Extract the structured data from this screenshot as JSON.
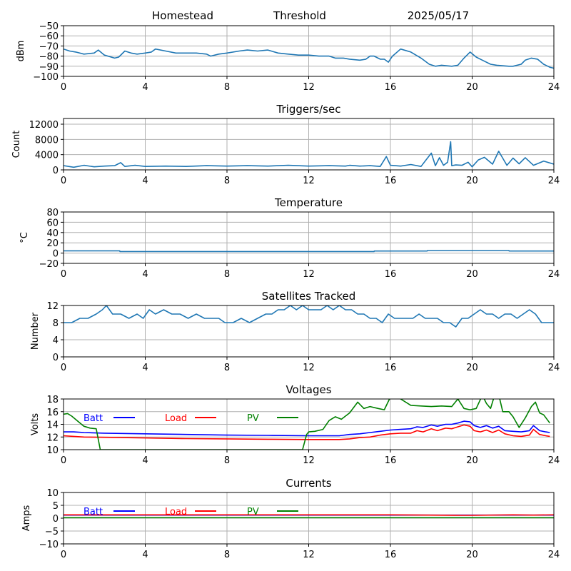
{
  "header": {
    "site": "Homestead",
    "mode": "Threshold",
    "date": "2025/05/17"
  },
  "colors": {
    "series_default": "#1f77b4",
    "batt": "#0000ff",
    "load": "#ff0000",
    "pv": "#008000",
    "grid": "#b0b0b0"
  },
  "chart_data": [
    {
      "id": "rssi",
      "type": "line",
      "title": "",
      "xlabel": "",
      "ylabel": "dBm",
      "xlim": [
        0,
        24
      ],
      "ylim": [
        -100,
        -50
      ],
      "xticks": [
        0,
        4,
        8,
        12,
        16,
        20,
        24
      ],
      "yticks": [
        -100,
        -90,
        -80,
        -70,
        -60,
        -50
      ],
      "grid": true,
      "series": [
        {
          "color": "#1f77b4",
          "x": [
            0,
            0.3,
            0.6,
            1.0,
            1.5,
            1.7,
            2.0,
            2.5,
            2.7,
            3.0,
            3.3,
            3.6,
            4.0,
            4.3,
            4.5,
            5.0,
            5.5,
            6.0,
            6.5,
            7.0,
            7.2,
            7.6,
            8.0,
            8.6,
            9.0,
            9.5,
            10.0,
            10.5,
            11.0,
            11.5,
            12.0,
            12.5,
            13.0,
            13.3,
            13.7,
            14.0,
            14.5,
            14.8,
            15.0,
            15.2,
            15.5,
            15.7,
            15.9,
            16.1,
            16.5,
            17.0,
            17.5,
            17.9,
            18.2,
            18.5,
            19.0,
            19.3,
            19.6,
            19.9,
            20.2,
            20.5,
            20.9,
            21.2,
            21.8,
            22.0,
            22.4,
            22.6,
            22.9,
            23.2,
            23.5,
            23.8,
            24.0
          ],
          "y": [
            -73,
            -75,
            -76,
            -78,
            -77,
            -74,
            -79,
            -82,
            -81,
            -75,
            -77,
            -78,
            -77,
            -76,
            -73,
            -75,
            -77,
            -77,
            -77,
            -78,
            -80,
            -78,
            -77,
            -75,
            -74,
            -75,
            -74,
            -77,
            -78,
            -79,
            -79,
            -80,
            -80,
            -82,
            -82,
            -83,
            -84,
            -83,
            -80,
            -80,
            -83,
            -83,
            -86,
            -80,
            -73,
            -76,
            -82,
            -88,
            -90,
            -89,
            -90,
            -89,
            -82,
            -76,
            -81,
            -84,
            -88,
            -89,
            -90,
            -90,
            -88,
            -84,
            -82,
            -83,
            -88,
            -91,
            -92
          ]
        }
      ]
    },
    {
      "id": "triggers",
      "type": "line",
      "title": "Triggers/sec",
      "xlabel": "",
      "ylabel": "Count",
      "xlim": [
        0,
        24
      ],
      "ylim": [
        0,
        13500
      ],
      "xticks": [
        0,
        4,
        8,
        12,
        16,
        20,
        24
      ],
      "yticks": [
        0,
        4000,
        8000,
        12000
      ],
      "grid": true,
      "series": [
        {
          "color": "#1f77b4",
          "x": [
            0,
            0.5,
            1.0,
            1.5,
            2.0,
            2.5,
            2.8,
            3.0,
            3.5,
            4.0,
            5.0,
            6.0,
            7.0,
            8.0,
            9.0,
            10.0,
            11.0,
            12.0,
            13.0,
            13.8,
            14.0,
            14.5,
            15.0,
            15.5,
            15.8,
            16.0,
            16.5,
            17.0,
            17.5,
            17.8,
            18.0,
            18.2,
            18.4,
            18.6,
            18.8,
            18.95,
            19.0,
            19.2,
            19.5,
            19.8,
            20.0,
            20.3,
            20.6,
            21.0,
            21.3,
            21.7,
            22.0,
            22.3,
            22.6,
            23.0,
            23.5,
            24.0
          ],
          "y": [
            1100,
            700,
            1200,
            800,
            1000,
            1100,
            1900,
            900,
            1200,
            900,
            1000,
            900,
            1100,
            1000,
            1100,
            1000,
            1200,
            1000,
            1100,
            1000,
            1200,
            1000,
            1100,
            900,
            3500,
            1200,
            1000,
            1400,
            900,
            3000,
            4400,
            1100,
            3200,
            1200,
            2000,
            7400,
            1100,
            1300,
            1200,
            2000,
            800,
            2600,
            3300,
            1500,
            4900,
            1200,
            3100,
            1600,
            3200,
            1200,
            2300,
            1500
          ]
        }
      ]
    },
    {
      "id": "temperature",
      "type": "line",
      "title": "Temperature",
      "xlabel": "",
      "ylabel": "°C",
      "xlim": [
        0,
        24
      ],
      "ylim": [
        -20,
        80
      ],
      "xticks": [
        0,
        4,
        8,
        12,
        16,
        20,
        24
      ],
      "yticks": [
        -20,
        0,
        20,
        40,
        60,
        80
      ],
      "grid": true,
      "series": [
        {
          "color": "#1f77b4",
          "x": [
            0,
            2.75,
            2.76,
            15.2,
            15.21,
            17.8,
            17.81,
            21.8,
            21.81,
            24
          ],
          "y": [
            4.5,
            4.5,
            3.0,
            3.0,
            4.0,
            4.0,
            5.0,
            5.0,
            4.0,
            4.0
          ]
        }
      ]
    },
    {
      "id": "satellites",
      "type": "line",
      "title": "Satellites Tracked",
      "xlabel": "",
      "ylabel": "Number",
      "xlim": [
        0,
        24
      ],
      "ylim": [
        0,
        12
      ],
      "xticks": [
        0,
        4,
        8,
        12,
        16,
        20,
        24
      ],
      "yticks": [
        0,
        4,
        8,
        12
      ],
      "grid": true,
      "series": [
        {
          "color": "#1f77b4",
          "x": [
            0,
            0.4,
            0.8,
            1.2,
            1.6,
            1.9,
            2.1,
            2.4,
            2.8,
            3.2,
            3.6,
            3.9,
            4.2,
            4.5,
            4.9,
            5.3,
            5.7,
            6.1,
            6.5,
            6.9,
            7.3,
            7.6,
            7.9,
            8.3,
            8.7,
            9.1,
            9.5,
            9.9,
            10.2,
            10.5,
            10.8,
            11.1,
            11.4,
            11.7,
            12.0,
            12.3,
            12.6,
            12.9,
            13.2,
            13.5,
            13.8,
            14.1,
            14.4,
            14.7,
            15.0,
            15.3,
            15.6,
            15.9,
            16.2,
            16.5,
            16.8,
            17.1,
            17.4,
            17.7,
            18.0,
            18.3,
            18.6,
            18.9,
            19.2,
            19.5,
            19.8,
            20.1,
            20.4,
            20.7,
            21.0,
            21.3,
            21.6,
            21.9,
            22.2,
            22.5,
            22.8,
            23.1,
            23.4,
            23.7,
            24.0
          ],
          "y": [
            8,
            8,
            9,
            9,
            10,
            11,
            12,
            10,
            10,
            9,
            10,
            9,
            11,
            10,
            11,
            10,
            10,
            9,
            10,
            9,
            9,
            9,
            8,
            8,
            9,
            8,
            9,
            10,
            10,
            11,
            11,
            12,
            11,
            12,
            11,
            11,
            11,
            12,
            11,
            12,
            11,
            11,
            10,
            10,
            9,
            9,
            8,
            10,
            9,
            9,
            9,
            9,
            10,
            9,
            9,
            9,
            8,
            8,
            7,
            9,
            9,
            10,
            11,
            10,
            10,
            9,
            10,
            10,
            9,
            10,
            11,
            10,
            8,
            8,
            8
          ]
        }
      ]
    },
    {
      "id": "voltages",
      "type": "line",
      "title": "Voltages",
      "xlabel": "",
      "ylabel": "Volts",
      "xlim": [
        0,
        24
      ],
      "ylim": [
        10,
        18
      ],
      "xticks": [
        0,
        4,
        8,
        12,
        16,
        20,
        24
      ],
      "yticks": [
        10,
        12,
        14,
        16,
        18
      ],
      "grid": true,
      "legend": [
        "Batt",
        "Load",
        "PV"
      ],
      "series": [
        {
          "name": "Batt",
          "color": "#0000ff",
          "x": [
            0,
            0.5,
            1,
            2,
            4,
            6,
            8,
            10,
            12,
            13.5,
            14,
            14.5,
            15,
            15.5,
            16,
            16.5,
            17,
            17.3,
            17.6,
            18,
            18.3,
            18.7,
            19.0,
            19.3,
            19.6,
            19.9,
            20.1,
            20.4,
            20.7,
            21.0,
            21.3,
            21.6,
            22.0,
            22.4,
            22.8,
            23.0,
            23.3,
            23.6,
            23.8
          ],
          "y": [
            12.8,
            12.8,
            12.7,
            12.6,
            12.5,
            12.4,
            12.3,
            12.25,
            12.2,
            12.2,
            12.4,
            12.5,
            12.7,
            12.9,
            13.1,
            13.2,
            13.3,
            13.6,
            13.5,
            13.9,
            13.7,
            14.0,
            14.0,
            14.2,
            14.5,
            14.4,
            13.8,
            13.5,
            13.8,
            13.4,
            13.7,
            13.0,
            12.9,
            12.8,
            13.0,
            13.8,
            13.0,
            12.8,
            12.7
          ]
        },
        {
          "name": "Load",
          "color": "#ff0000",
          "x": [
            0,
            0.5,
            1,
            2,
            4,
            6,
            8,
            10,
            12,
            13.5,
            14,
            14.5,
            15,
            15.5,
            16,
            16.5,
            17,
            17.3,
            17.6,
            18,
            18.3,
            18.7,
            19.0,
            19.3,
            19.6,
            19.9,
            20.1,
            20.4,
            20.7,
            21.0,
            21.3,
            21.6,
            22.0,
            22.4,
            22.8,
            23.0,
            23.3,
            23.6,
            23.8
          ],
          "y": [
            12.2,
            12.1,
            12.0,
            11.95,
            11.85,
            11.75,
            11.7,
            11.65,
            11.6,
            11.6,
            11.7,
            11.9,
            12.0,
            12.3,
            12.5,
            12.6,
            12.6,
            13.0,
            12.8,
            13.3,
            13.0,
            13.4,
            13.3,
            13.6,
            13.9,
            13.7,
            13.0,
            12.8,
            13.1,
            12.7,
            13.1,
            12.5,
            12.2,
            12.1,
            12.3,
            13.2,
            12.4,
            12.2,
            12.1
          ]
        },
        {
          "name": "PV",
          "color": "#008000",
          "x": [
            0,
            0.2,
            0.4,
            0.7,
            1.0,
            1.3,
            1.6,
            1.8,
            11.7,
            11.9,
            12.0,
            12.3,
            12.7,
            13.0,
            13.3,
            13.6,
            14.0,
            14.4,
            14.7,
            15.0,
            15.4,
            15.7,
            16.0,
            16.2,
            16.5,
            17.0,
            17.5,
            18.0,
            18.5,
            19.0,
            19.3,
            19.6,
            19.9,
            20.2,
            20.5,
            20.7,
            20.9,
            21.1,
            21.3,
            21.5,
            21.8,
            22.0,
            22.3,
            22.6,
            22.9,
            23.1,
            23.3,
            23.5,
            23.8
          ],
          "y": [
            15.6,
            15.7,
            15.3,
            14.5,
            13.7,
            13.4,
            13.3,
            10.0,
            10.0,
            12.4,
            12.8,
            12.9,
            13.2,
            14.6,
            15.2,
            14.8,
            15.8,
            17.5,
            16.5,
            16.8,
            16.5,
            16.3,
            18.3,
            18.6,
            18.0,
            17.0,
            16.9,
            16.8,
            16.9,
            16.8,
            18.0,
            16.5,
            16.3,
            16.5,
            18.6,
            17.3,
            16.5,
            18.6,
            18.7,
            16.0,
            16.0,
            15.2,
            13.5,
            15.0,
            16.8,
            17.5,
            15.8,
            15.5,
            14.2
          ]
        }
      ]
    },
    {
      "id": "currents",
      "type": "line",
      "title": "Currents",
      "xlabel": "",
      "ylabel": "Amps",
      "xlim": [
        0,
        24
      ],
      "ylim": [
        -10,
        10
      ],
      "xticks": [
        0,
        4,
        8,
        12,
        16,
        20,
        24
      ],
      "yticks": [
        -10,
        -5,
        0,
        5,
        10
      ],
      "grid": true,
      "legend": [
        "Batt",
        "Load",
        "PV"
      ],
      "series": [
        {
          "name": "Batt",
          "color": "#0000ff",
          "x": [
            0,
            24
          ],
          "y": [
            1.2,
            1.2
          ]
        },
        {
          "name": "Load",
          "color": "#ff0000",
          "x": [
            0,
            4,
            8,
            12,
            16,
            19.5,
            20,
            22,
            23,
            24
          ],
          "y": [
            1.3,
            1.3,
            1.3,
            1.3,
            1.3,
            1.1,
            1.1,
            1.3,
            1.2,
            1.3
          ]
        },
        {
          "name": "PV",
          "color": "#008000",
          "x": [
            0,
            24
          ],
          "y": [
            0.2,
            0.2
          ]
        }
      ]
    }
  ]
}
